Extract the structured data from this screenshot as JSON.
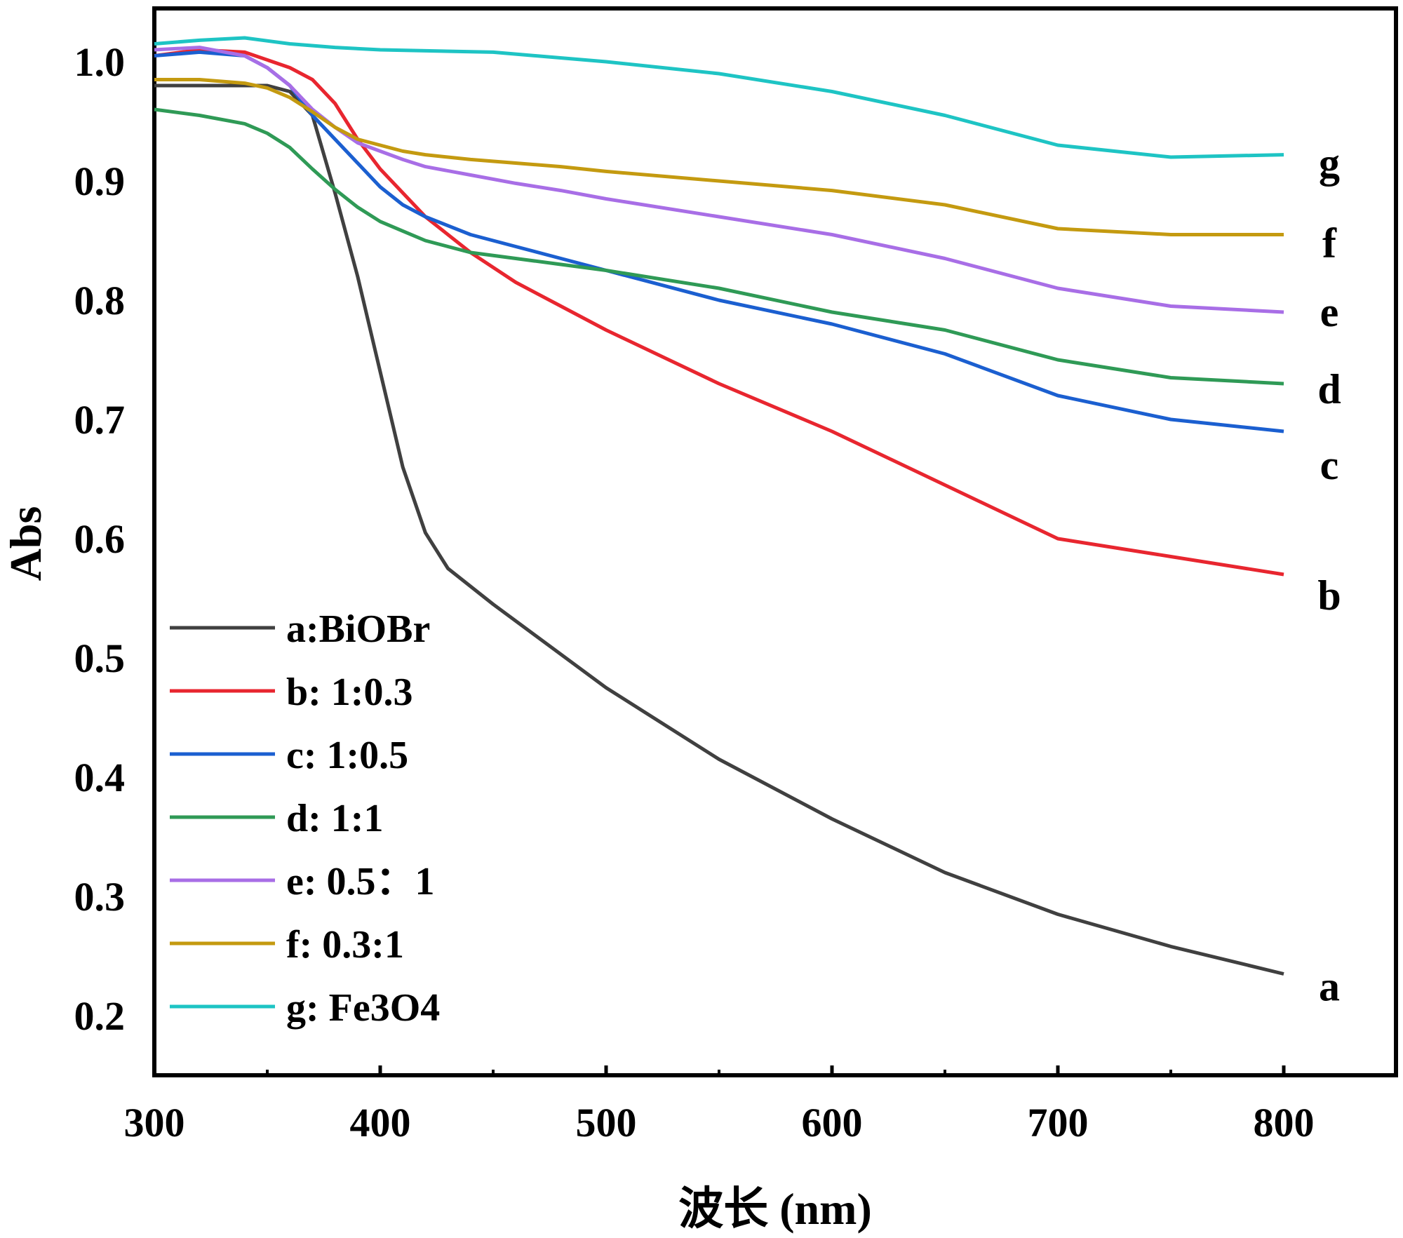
{
  "chart_data": {
    "type": "line",
    "title": "",
    "xlabel": "波长 (nm)",
    "ylabel": "Abs",
    "xlim": [
      300,
      850
    ],
    "ylim": [
      0.16,
      1.05
    ],
    "xticks": [
      300,
      400,
      500,
      600,
      700,
      800
    ],
    "xtick_labels": [
      "300",
      "400",
      "500",
      "600",
      "700",
      "800"
    ],
    "yticks": [
      0.2,
      0.3,
      0.4,
      0.5,
      0.6,
      0.7,
      0.8,
      0.9,
      1.0
    ],
    "ytick_labels": [
      "0.2",
      "0.3",
      "0.4",
      "0.5",
      "0.6",
      "0.7",
      "0.8",
      "0.9",
      "1.0"
    ],
    "grid": false,
    "legend_position": "bottom-left",
    "series": [
      {
        "id": "a",
        "name": "a:BiOBr",
        "end_label": "a",
        "color": "#404040",
        "x": [
          300,
          320,
          340,
          350,
          360,
          370,
          380,
          390,
          400,
          410,
          420,
          430,
          450,
          475,
          500,
          550,
          600,
          650,
          700,
          750,
          800
        ],
        "y": [
          0.98,
          0.98,
          0.98,
          0.98,
          0.975,
          0.955,
          0.89,
          0.82,
          0.74,
          0.66,
          0.605,
          0.575,
          0.545,
          0.51,
          0.475,
          0.415,
          0.365,
          0.32,
          0.285,
          0.258,
          0.235
        ]
      },
      {
        "id": "b",
        "name": "b: 1:0.3",
        "end_label": "b",
        "color": "#e8262f",
        "x": [
          300,
          320,
          340,
          360,
          370,
          380,
          390,
          400,
          410,
          420,
          440,
          460,
          480,
          500,
          550,
          600,
          650,
          700,
          750,
          800
        ],
        "y": [
          1.005,
          1.01,
          1.008,
          0.995,
          0.985,
          0.965,
          0.935,
          0.91,
          0.89,
          0.87,
          0.84,
          0.815,
          0.795,
          0.775,
          0.73,
          0.69,
          0.645,
          0.6,
          0.585,
          0.57
        ]
      },
      {
        "id": "c",
        "name": "c: 1:0.5",
        "end_label": "c",
        "color": "#1b5fd0",
        "x": [
          300,
          320,
          340,
          350,
          360,
          370,
          380,
          390,
          400,
          410,
          420,
          440,
          460,
          480,
          500,
          550,
          600,
          650,
          700,
          750,
          800
        ],
        "y": [
          1.005,
          1.008,
          1.005,
          0.995,
          0.98,
          0.955,
          0.935,
          0.915,
          0.895,
          0.88,
          0.87,
          0.855,
          0.845,
          0.835,
          0.825,
          0.8,
          0.78,
          0.755,
          0.72,
          0.7,
          0.69
        ]
      },
      {
        "id": "d",
        "name": "d: 1:1",
        "end_label": "d",
        "color": "#2f9a56",
        "x": [
          300,
          320,
          340,
          350,
          360,
          370,
          380,
          390,
          400,
          410,
          420,
          440,
          460,
          480,
          500,
          550,
          600,
          650,
          700,
          750,
          800
        ],
        "y": [
          0.96,
          0.955,
          0.948,
          0.94,
          0.928,
          0.91,
          0.893,
          0.878,
          0.866,
          0.858,
          0.85,
          0.84,
          0.835,
          0.83,
          0.825,
          0.81,
          0.79,
          0.775,
          0.75,
          0.735,
          0.73
        ]
      },
      {
        "id": "e",
        "name": "e: 0.5：1",
        "end_label": "e",
        "color": "#a86ee6",
        "x": [
          300,
          320,
          340,
          350,
          360,
          370,
          380,
          390,
          400,
          410,
          420,
          440,
          460,
          480,
          500,
          550,
          600,
          650,
          700,
          750,
          800
        ],
        "y": [
          1.01,
          1.012,
          1.005,
          0.995,
          0.98,
          0.96,
          0.945,
          0.932,
          0.925,
          0.918,
          0.912,
          0.905,
          0.898,
          0.892,
          0.885,
          0.87,
          0.855,
          0.835,
          0.81,
          0.795,
          0.79
        ]
      },
      {
        "id": "f",
        "name": "f: 0.3:1",
        "end_label": "f",
        "color": "#c49a10",
        "x": [
          300,
          320,
          340,
          350,
          360,
          370,
          380,
          390,
          400,
          410,
          420,
          440,
          460,
          480,
          500,
          550,
          600,
          650,
          700,
          750,
          800
        ],
        "y": [
          0.985,
          0.985,
          0.982,
          0.978,
          0.97,
          0.958,
          0.945,
          0.935,
          0.93,
          0.925,
          0.922,
          0.918,
          0.915,
          0.912,
          0.908,
          0.9,
          0.892,
          0.88,
          0.86,
          0.855,
          0.855
        ]
      },
      {
        "id": "g",
        "name": "g: Fe3O4",
        "end_label": "g",
        "color": "#1ec4c4",
        "x": [
          300,
          320,
          340,
          360,
          380,
          400,
          450,
          500,
          550,
          600,
          650,
          700,
          750,
          800
        ],
        "y": [
          1.015,
          1.018,
          1.02,
          1.015,
          1.012,
          1.01,
          1.008,
          1.0,
          0.99,
          0.975,
          0.955,
          0.93,
          0.92,
          0.922
        ]
      }
    ]
  }
}
